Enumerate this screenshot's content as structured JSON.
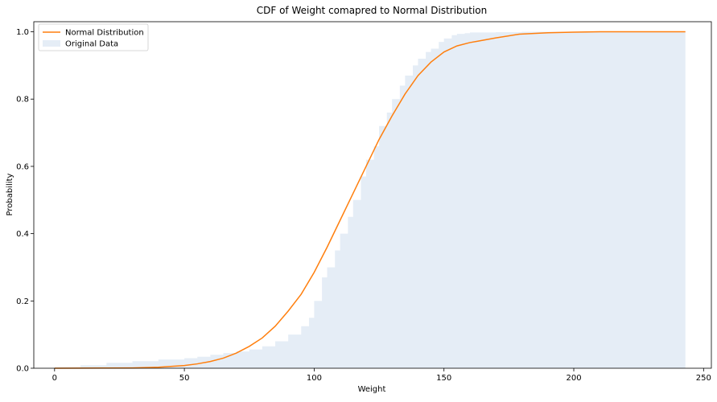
{
  "chart_data": {
    "type": "area",
    "title": "CDF of Weight comapred to Normal Distribution",
    "xlabel": "Weight",
    "ylabel": "Probability",
    "xlim": [
      -8,
      253
    ],
    "ylim": [
      0,
      1.03
    ],
    "xticks": [
      0,
      50,
      100,
      150,
      200,
      250
    ],
    "yticks": [
      0.0,
      0.2,
      0.4,
      0.6,
      0.8,
      1.0
    ],
    "ytick_labels": [
      "0.0",
      "0.2",
      "0.4",
      "0.6",
      "0.8",
      "1.0"
    ],
    "xtick_labels": [
      "0",
      "50",
      "100",
      "150",
      "200",
      "250"
    ],
    "grid": false,
    "legend_position": "top-left",
    "series": [
      {
        "name": "Normal Distribution",
        "type": "line",
        "color": "#ff7f0e",
        "x": [
          0,
          20,
          30,
          40,
          50,
          55,
          60,
          65,
          70,
          75,
          80,
          85,
          90,
          95,
          100,
          105,
          110,
          115,
          120,
          125,
          130,
          135,
          140,
          145,
          150,
          155,
          160,
          163,
          170,
          179,
          190,
          200,
          210,
          220,
          230,
          243
        ],
        "y": [
          0.0,
          0.0005,
          0.001,
          0.003,
          0.008,
          0.013,
          0.02,
          0.03,
          0.045,
          0.065,
          0.09,
          0.125,
          0.17,
          0.22,
          0.285,
          0.36,
          0.44,
          0.52,
          0.6,
          0.68,
          0.75,
          0.815,
          0.87,
          0.91,
          0.94,
          0.958,
          0.968,
          0.972,
          0.982,
          0.993,
          0.997,
          0.999,
          1.0,
          1.0,
          1.0,
          1.0
        ]
      },
      {
        "name": "Original Data",
        "type": "area",
        "color": "#dce7f3",
        "x": [
          0,
          10,
          20,
          30,
          40,
          50,
          55,
          60,
          65,
          70,
          75,
          80,
          85,
          90,
          95,
          98,
          100,
          103,
          105,
          108,
          110,
          113,
          115,
          118,
          120,
          123,
          125,
          128,
          130,
          133,
          135,
          138,
          140,
          143,
          145,
          148,
          150,
          153,
          155,
          158,
          160,
          170,
          180,
          200,
          243
        ],
        "y": [
          0.003,
          0.009,
          0.016,
          0.021,
          0.026,
          0.03,
          0.034,
          0.04,
          0.045,
          0.05,
          0.056,
          0.065,
          0.08,
          0.1,
          0.125,
          0.15,
          0.2,
          0.27,
          0.3,
          0.35,
          0.4,
          0.45,
          0.5,
          0.57,
          0.62,
          0.66,
          0.72,
          0.76,
          0.8,
          0.84,
          0.87,
          0.9,
          0.92,
          0.94,
          0.95,
          0.97,
          0.98,
          0.99,
          0.994,
          0.996,
          0.998,
          0.999,
          1.0,
          1.0,
          1.0
        ]
      }
    ]
  }
}
